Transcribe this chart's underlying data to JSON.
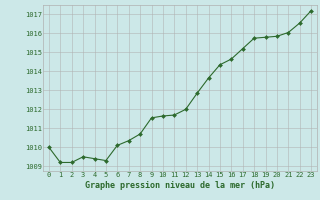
{
  "x": [
    0,
    1,
    2,
    3,
    4,
    5,
    6,
    7,
    8,
    9,
    10,
    11,
    12,
    13,
    14,
    15,
    16,
    17,
    18,
    19,
    20,
    21,
    22,
    23
  ],
  "y": [
    1010.0,
    1009.2,
    1009.2,
    1009.5,
    1009.4,
    1009.3,
    1010.1,
    1010.35,
    1010.7,
    1011.55,
    1011.65,
    1011.7,
    1012.0,
    1012.85,
    1013.65,
    1014.35,
    1014.65,
    1015.2,
    1015.75,
    1015.8,
    1015.85,
    1016.05,
    1016.55,
    1017.2
  ],
  "ylim": [
    1008.75,
    1017.5
  ],
  "yticks": [
    1009,
    1010,
    1011,
    1012,
    1013,
    1014,
    1015,
    1016,
    1017
  ],
  "xlim": [
    -0.5,
    23.5
  ],
  "line_color": "#2d6a2d",
  "marker_color": "#2d6a2d",
  "bg_color": "#cce8e8",
  "grid_color": "#b0b0b0",
  "xlabel": "Graphe pression niveau de la mer (hPa)",
  "xlabel_color": "#2d6a2d",
  "tick_color": "#2d6a2d",
  "tick_fontsize": 5.0,
  "xlabel_fontsize": 6.0
}
